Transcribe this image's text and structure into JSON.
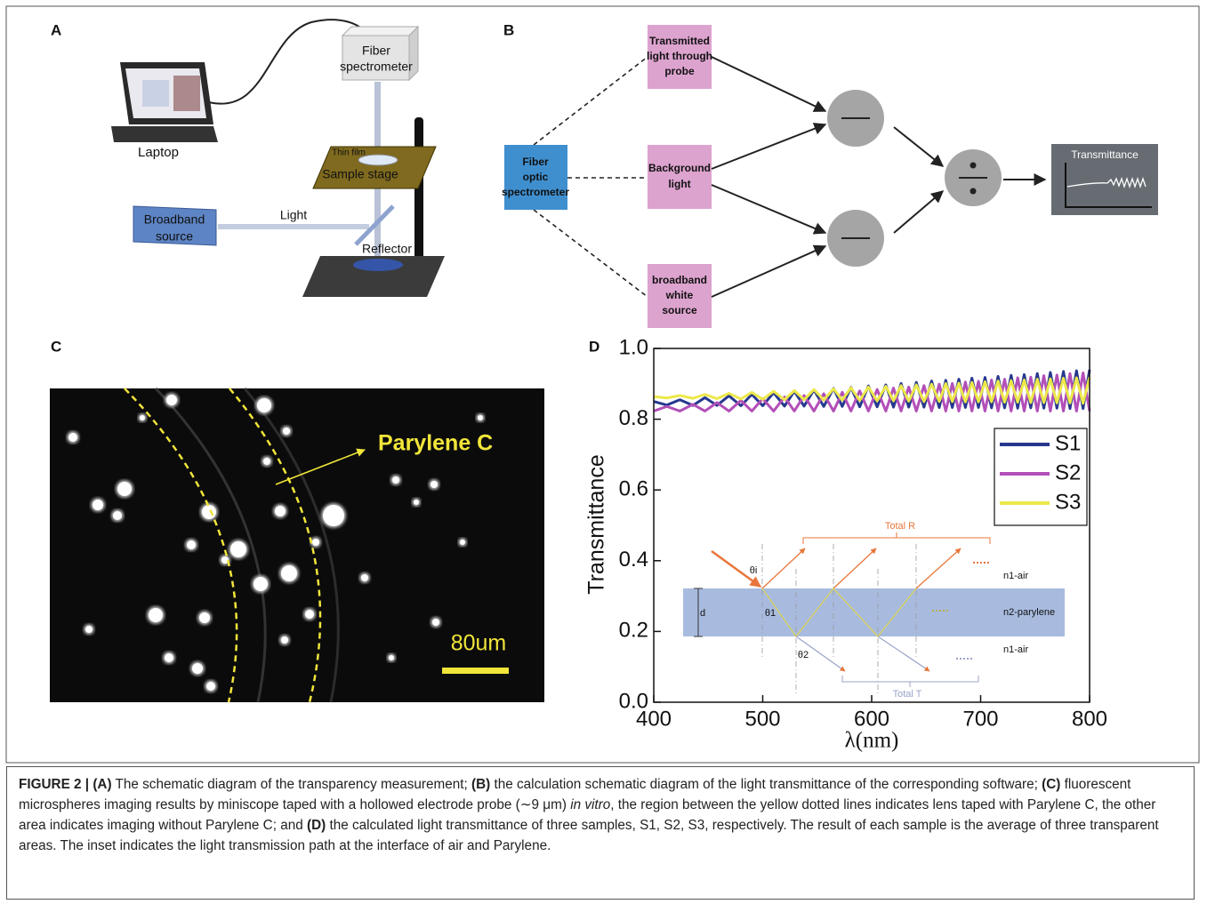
{
  "figure": {
    "panel_labels": [
      "A",
      "B",
      "C",
      "D"
    ]
  },
  "panel_a": {
    "fiber_spectrometer": [
      "Fiber",
      "spectrometer"
    ],
    "laptop": "Laptop",
    "thin_film": "Thin film",
    "sample_stage": "Sample stage",
    "broadband_source": [
      "Broadband",
      "source"
    ],
    "light": "Light",
    "reflector": "Reflector"
  },
  "panel_b": {
    "fiber_optic": [
      "Fiber",
      "optic",
      "spectrometer"
    ],
    "transmitted": [
      "Transmitted",
      "light through",
      "probe"
    ],
    "background": [
      "Background",
      "light"
    ],
    "broadband": [
      "broadband",
      "white",
      "source"
    ],
    "output": "Transmittance"
  },
  "panel_c": {
    "label": "Parylene C",
    "scale_bar": "80um"
  },
  "chart_data": {
    "type": "line",
    "xlabel": "λ(nm)",
    "ylabel": "Transmittance",
    "x": [
      400,
      412,
      424,
      436,
      447,
      458,
      469,
      480,
      490,
      500,
      510,
      520,
      529,
      538,
      547,
      556,
      565,
      573,
      581,
      589,
      597,
      605,
      613,
      620,
      627,
      634,
      641,
      648,
      655,
      662,
      668,
      674,
      680,
      686,
      692,
      698,
      704,
      710,
      716,
      722,
      728,
      734,
      740,
      746,
      752,
      758,
      764,
      770,
      776,
      782,
      788,
      794,
      800
    ],
    "series": [
      {
        "name": "S1",
        "color": "#26388e",
        "values": [
          0.85,
          0.84,
          0.855,
          0.839,
          0.861,
          0.839,
          0.866,
          0.838,
          0.87,
          0.838,
          0.875,
          0.837,
          0.879,
          0.837,
          0.883,
          0.836,
          0.887,
          0.836,
          0.89,
          0.835,
          0.894,
          0.835,
          0.897,
          0.834,
          0.901,
          0.834,
          0.904,
          0.834,
          0.908,
          0.833,
          0.91,
          0.833,
          0.913,
          0.833,
          0.916,
          0.833,
          0.918,
          0.832,
          0.921,
          0.832,
          0.924,
          0.831,
          0.926,
          0.832,
          0.929,
          0.831,
          0.932,
          0.831,
          0.935,
          0.83,
          0.937,
          0.83,
          0.94
        ]
      },
      {
        "name": "S2",
        "color": "#b24fb8",
        "values": [
          0.823,
          0.836,
          0.823,
          0.842,
          0.823,
          0.847,
          0.823,
          0.853,
          0.823,
          0.858,
          0.823,
          0.863,
          0.823,
          0.867,
          0.823,
          0.872,
          0.823,
          0.876,
          0.823,
          0.88,
          0.823,
          0.884,
          0.823,
          0.888,
          0.823,
          0.891,
          0.823,
          0.895,
          0.823,
          0.899,
          0.823,
          0.901,
          0.823,
          0.905,
          0.823,
          0.907,
          0.823,
          0.911,
          0.823,
          0.913,
          0.823,
          0.917,
          0.823,
          0.919,
          0.823,
          0.923,
          0.823,
          0.925,
          0.823,
          0.929,
          0.823,
          0.931,
          0.823
        ]
      },
      {
        "name": "S3",
        "color": "#ece84a",
        "values": [
          0.864,
          0.86,
          0.867,
          0.859,
          0.87,
          0.858,
          0.873,
          0.857,
          0.876,
          0.856,
          0.879,
          0.855,
          0.881,
          0.855,
          0.884,
          0.854,
          0.886,
          0.854,
          0.889,
          0.853,
          0.891,
          0.852,
          0.893,
          0.852,
          0.895,
          0.851,
          0.897,
          0.85,
          0.899,
          0.85,
          0.901,
          0.85,
          0.902,
          0.849,
          0.904,
          0.849,
          0.906,
          0.849,
          0.908,
          0.848,
          0.909,
          0.848,
          0.911,
          0.847,
          0.913,
          0.847,
          0.914,
          0.846,
          0.916,
          0.846,
          0.917,
          0.845,
          0.919
        ]
      }
    ],
    "xlim": [
      400,
      800
    ],
    "ylim": [
      0,
      1
    ],
    "xticks": [
      400,
      500,
      600,
      700,
      800
    ],
    "yticks": [
      {
        "value": 0,
        "label": "0.0"
      },
      0.2,
      0.4,
      0.6,
      0.8,
      {
        "value": 1,
        "label": "1.0"
      }
    ],
    "grid": false,
    "legend": "right",
    "inset": {
      "total_r": "Total R",
      "theta_i": "θi",
      "theta_1": "θ1",
      "theta_2": "θ2",
      "d": "d",
      "n1_top": "n1-air",
      "n2": "n2-parylene",
      "n1_bottom": "n1-air",
      "total_t": "Total T"
    }
  },
  "caption": {
    "parts": [
      "FIGURE 2 | (A)",
      " The schematic diagram of the transparency measurement; ",
      "(B)",
      " the calculation schematic diagram of the light transmittance of the corresponding software; ",
      "(C)",
      " fluorescent microspheres imaging results by miniscope taped with a hollowed electrode probe (∼9 μm) ",
      "in vitro",
      ", the region between the yellow dotted lines indicates lens taped with Parylene C, the other area indicates imaging without Parylene C; and ",
      "(D)",
      " the calculated light transmittance of three samples, S1, S2, S3, respectively. The result of each sample is the average of three transparent areas. The inset indicates the light transmission path at the interface of air and Parylene."
    ]
  }
}
